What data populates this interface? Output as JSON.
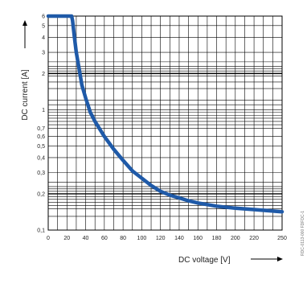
{
  "chart_data": {
    "type": "line",
    "title": "",
    "xlabel": "DC voltage [V]",
    "ylabel": "DC current [A]",
    "x_scale": "linear",
    "y_scale": "log",
    "xlim": [
      0,
      250
    ],
    "ylim": [
      0.1,
      6
    ],
    "x_ticks": [
      "0",
      "20",
      "40",
      "60",
      "80",
      "100",
      "120",
      "140",
      "160",
      "180",
      "200",
      "220",
      "250"
    ],
    "y_ticks": [
      {
        "value": 0.1,
        "label": "0,1"
      },
      {
        "value": 0.2,
        "label": "0,2"
      },
      {
        "value": 0.3,
        "label": "0,3"
      },
      {
        "value": 0.4,
        "label": "0,4"
      },
      {
        "value": 0.5,
        "label": "0,5"
      },
      {
        "value": 0.6,
        "label": "0,6"
      },
      {
        "value": 0.7,
        "label": "0,7"
      },
      {
        "value": 1,
        "label": "1"
      },
      {
        "value": 2,
        "label": "2"
      },
      {
        "value": 3,
        "label": "3"
      },
      {
        "value": 4,
        "label": "4"
      },
      {
        "value": 5,
        "label": "5"
      },
      {
        "value": 6,
        "label": "6"
      }
    ],
    "grid": true,
    "series": [
      {
        "color": "#1f5aa8",
        "x": [
          0,
          25,
          26,
          28,
          30,
          33,
          36,
          40,
          45,
          50,
          60,
          70,
          80,
          90,
          100,
          110,
          120,
          130,
          140,
          150,
          160,
          180,
          200,
          220,
          250
        ],
        "y": [
          6,
          6,
          5.5,
          4,
          3,
          2.2,
          1.6,
          1.25,
          0.95,
          0.8,
          0.6,
          0.47,
          0.38,
          0.31,
          0.27,
          0.235,
          0.21,
          0.195,
          0.185,
          0.175,
          0.168,
          0.158,
          0.152,
          0.148,
          0.142
        ]
      }
    ]
  },
  "side_code": "RDC-0113-000 FDFDC-1"
}
